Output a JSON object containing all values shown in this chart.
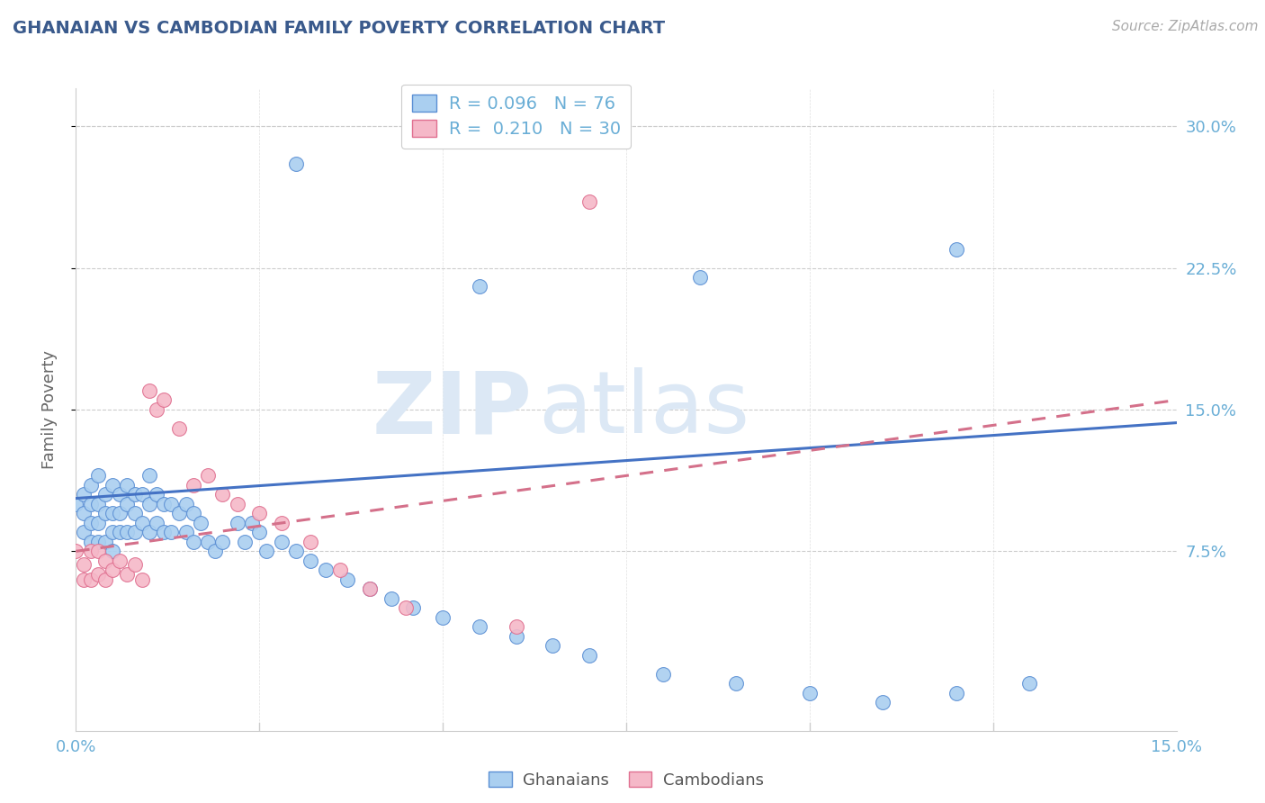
{
  "title": "GHANAIAN VS CAMBODIAN FAMILY POVERTY CORRELATION CHART",
  "source": "Source: ZipAtlas.com",
  "ylabel": "Family Poverty",
  "xlim": [
    0.0,
    0.15
  ],
  "ylim": [
    -0.02,
    0.32
  ],
  "title_color": "#3a5a8c",
  "source_color": "#aaaaaa",
  "axis_color": "#6aaed6",
  "tick_color": "#6aaed6",
  "background_color": "#ffffff",
  "grid_color": "#cccccc",
  "watermark_zip": "ZIP",
  "watermark_atlas": "atlas",
  "watermark_color": "#dce8f5",
  "ghanaian_color": "#aacff0",
  "cambodian_color": "#f5b8c8",
  "ghanaian_edge_color": "#5b8fd4",
  "cambodian_edge_color": "#e07090",
  "ghanaian_line_color": "#4472c4",
  "cambodian_line_color": "#d4708a",
  "ytick_vals": [
    0.075,
    0.15,
    0.225,
    0.3
  ],
  "ytick_labels": [
    "7.5%",
    "15.0%",
    "22.5%",
    "30.0%"
  ],
  "xtick_vals": [
    0.0,
    0.15
  ],
  "xtick_labels": [
    "0.0%",
    "15.0%"
  ],
  "legend1_label": "R = 0.096   N = 76",
  "legend2_label": "R =  0.210   N = 30",
  "bottom_legend1": "Ghanaians",
  "bottom_legend2": "Cambodians",
  "ghanaian_trend_x": [
    0.0,
    0.15
  ],
  "ghanaian_trend_y": [
    0.103,
    0.143
  ],
  "cambodian_trend_x": [
    0.0,
    0.15
  ],
  "cambodian_trend_y": [
    0.075,
    0.155
  ],
  "ghanaian_x": [
    0.0,
    0.001,
    0.001,
    0.001,
    0.002,
    0.002,
    0.002,
    0.002,
    0.003,
    0.003,
    0.003,
    0.003,
    0.004,
    0.004,
    0.004,
    0.005,
    0.005,
    0.005,
    0.005,
    0.006,
    0.006,
    0.006,
    0.007,
    0.007,
    0.007,
    0.008,
    0.008,
    0.008,
    0.009,
    0.009,
    0.01,
    0.01,
    0.01,
    0.011,
    0.011,
    0.012,
    0.012,
    0.013,
    0.013,
    0.014,
    0.015,
    0.015,
    0.016,
    0.016,
    0.017,
    0.018,
    0.019,
    0.02,
    0.022,
    0.023,
    0.024,
    0.025,
    0.026,
    0.028,
    0.03,
    0.032,
    0.034,
    0.037,
    0.04,
    0.043,
    0.046,
    0.05,
    0.055,
    0.06,
    0.065,
    0.07,
    0.08,
    0.09,
    0.1,
    0.11,
    0.12,
    0.13,
    0.12,
    0.085,
    0.055,
    0.03
  ],
  "ghanaian_y": [
    0.1,
    0.105,
    0.095,
    0.085,
    0.11,
    0.1,
    0.09,
    0.08,
    0.115,
    0.1,
    0.09,
    0.08,
    0.105,
    0.095,
    0.08,
    0.11,
    0.095,
    0.085,
    0.075,
    0.105,
    0.095,
    0.085,
    0.11,
    0.1,
    0.085,
    0.105,
    0.095,
    0.085,
    0.105,
    0.09,
    0.115,
    0.1,
    0.085,
    0.105,
    0.09,
    0.1,
    0.085,
    0.1,
    0.085,
    0.095,
    0.1,
    0.085,
    0.095,
    0.08,
    0.09,
    0.08,
    0.075,
    0.08,
    0.09,
    0.08,
    0.09,
    0.085,
    0.075,
    0.08,
    0.075,
    0.07,
    0.065,
    0.06,
    0.055,
    0.05,
    0.045,
    0.04,
    0.035,
    0.03,
    0.025,
    0.02,
    0.01,
    0.005,
    0.0,
    -0.005,
    0.0,
    0.005,
    0.235,
    0.22,
    0.215,
    0.28
  ],
  "cambodian_x": [
    0.0,
    0.001,
    0.001,
    0.002,
    0.002,
    0.003,
    0.003,
    0.004,
    0.004,
    0.005,
    0.006,
    0.007,
    0.008,
    0.009,
    0.01,
    0.011,
    0.012,
    0.014,
    0.016,
    0.018,
    0.02,
    0.022,
    0.025,
    0.028,
    0.032,
    0.036,
    0.04,
    0.045,
    0.06,
    0.07
  ],
  "cambodian_y": [
    0.075,
    0.068,
    0.06,
    0.075,
    0.06,
    0.075,
    0.063,
    0.07,
    0.06,
    0.065,
    0.07,
    0.063,
    0.068,
    0.06,
    0.16,
    0.15,
    0.155,
    0.14,
    0.11,
    0.115,
    0.105,
    0.1,
    0.095,
    0.09,
    0.08,
    0.065,
    0.055,
    0.045,
    0.035,
    0.26
  ]
}
